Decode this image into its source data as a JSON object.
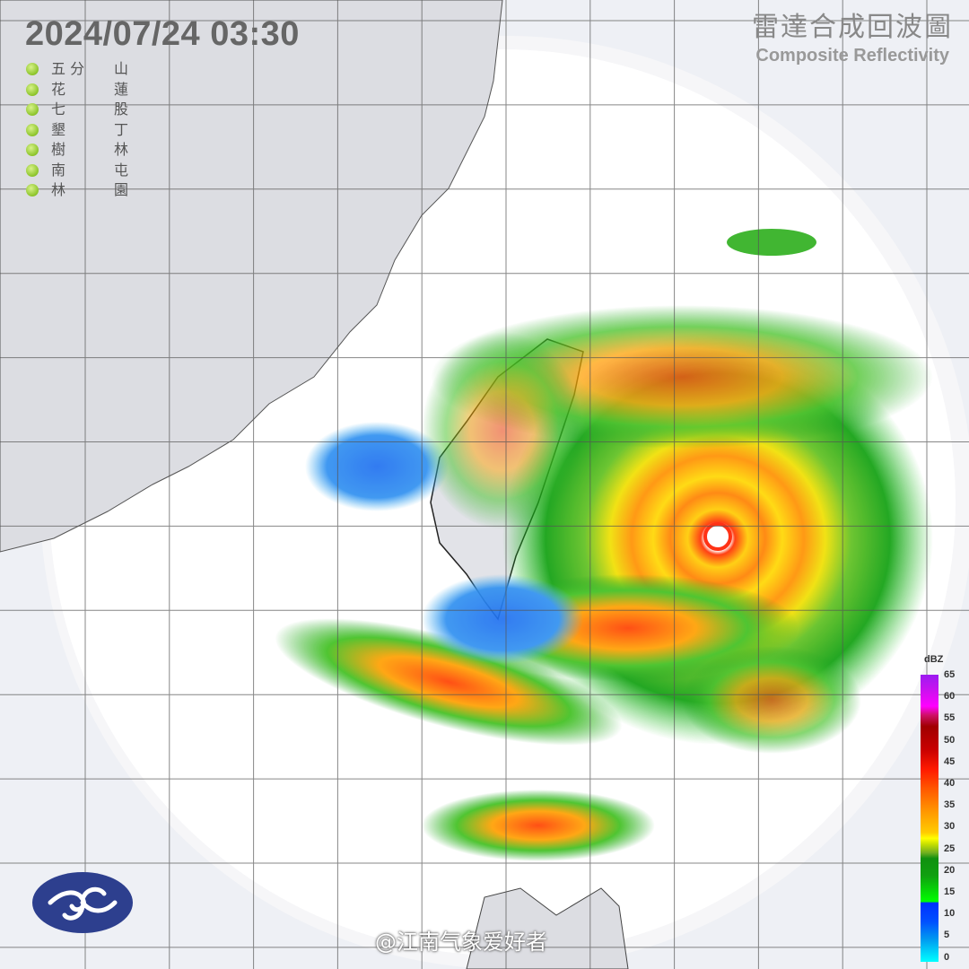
{
  "header": {
    "datetime": "2024/07/24  03:30",
    "title_zh": "雷達合成回波圖",
    "title_en": "Composite Reflectivity"
  },
  "stations": [
    {
      "a": "五 分",
      "b": "山"
    },
    {
      "a": "花",
      "b": "蓮"
    },
    {
      "a": "七",
      "b": "股"
    },
    {
      "a": "墾",
      "b": "丁"
    },
    {
      "a": "樹",
      "b": "林"
    },
    {
      "a": "南",
      "b": "屯"
    },
    {
      "a": "林",
      "b": "園"
    }
  ],
  "station_status_color": "#8cc42a",
  "colorbar": {
    "unit": "dBZ",
    "labels": [
      "65",
      "60",
      "55",
      "50",
      "45",
      "40",
      "35",
      "30",
      "25",
      "20",
      "15",
      "10",
      "5",
      "0"
    ]
  },
  "logo": {
    "text": "Central Weather Administration emblem",
    "color": "#2d3f8e"
  },
  "watermark": "@江南气象爱好者"
}
